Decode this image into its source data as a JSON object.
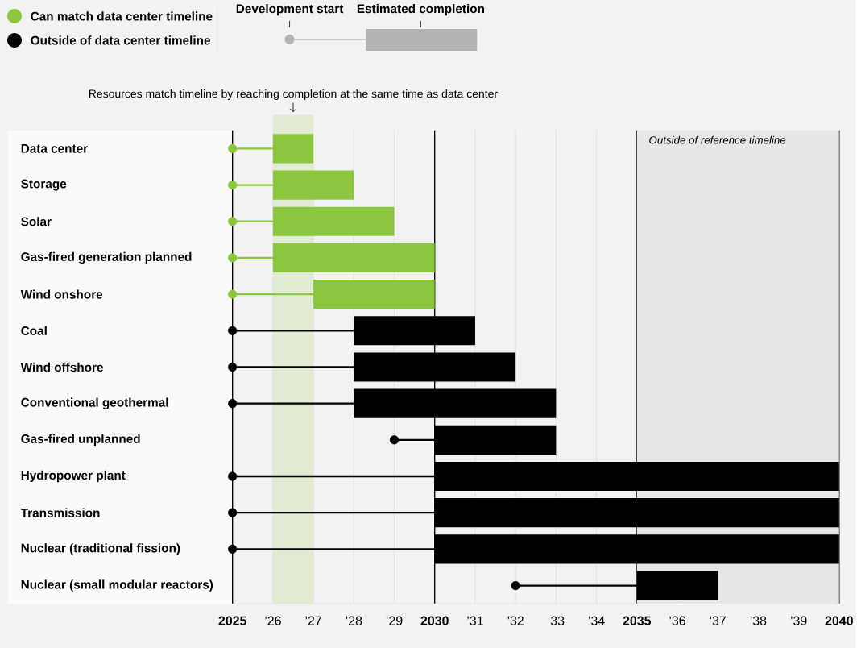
{
  "chart_data": {
    "type": "bar",
    "orientation": "horizontal",
    "categories": [
      "Data center",
      "Storage",
      "Solar",
      "Gas-fired generation planned",
      "Wind onshore",
      "Coal",
      "Wind offshore",
      "Conventional geothermal",
      "Gas-fired unplanned",
      "Hydropower plant",
      "Transmission",
      "Nuclear (traditional fission)",
      "Nuclear (small modular reactors)"
    ],
    "series": [
      {
        "name": "Can match data center timeline",
        "color": "#8cc63f",
        "base": [
          2026,
          2026,
          2026,
          2026,
          2027,
          null,
          null,
          null,
          null,
          null,
          null,
          null,
          null
        ],
        "values": [
          1,
          2,
          3,
          4,
          3,
          null,
          null,
          null,
          null,
          null,
          null,
          null,
          null
        ]
      },
      {
        "name": "Outside of data center timeline",
        "color": "#000000",
        "base": [
          null,
          null,
          null,
          null,
          null,
          2028,
          2028,
          2028,
          2030,
          2030,
          2030,
          2030,
          2035
        ],
        "values": [
          null,
          null,
          null,
          null,
          null,
          3,
          4,
          5,
          3,
          10,
          10,
          10,
          2
        ]
      },
      {
        "base": [
          2025,
          2025,
          2025,
          2025,
          2025,
          2025,
          2025,
          2025,
          2029,
          2025,
          2025,
          2025,
          2032
        ],
        "values": [
          1,
          1,
          1,
          1,
          2,
          3,
          3,
          3,
          1,
          5,
          5,
          5,
          3
        ],
        "colors": [
          "#8cc63f",
          "#8cc63f",
          "#8cc63f",
          "#8cc63f",
          "#8cc63f",
          "#000000",
          "#000000",
          "#000000",
          "#000000",
          "#000000",
          "#000000",
          "#000000",
          "#000000"
        ]
      },
      {
        "type": "scatter",
        "values": [
          2025,
          2025,
          2025,
          2025,
          2025,
          2025,
          2025,
          2025,
          2029,
          2025,
          2025,
          2025,
          2032
        ],
        "colors": [
          "#8cc63f",
          "#8cc63f",
          "#8cc63f",
          "#8cc63f",
          "#8cc63f",
          "#000000",
          "#000000",
          "#000000",
          "#000000",
          "#000000",
          "#000000",
          "#000000",
          "#000000"
        ]
      }
    ],
    "xlim": [
      2025,
      2040
    ],
    "xticks": [
      2025,
      {
        "value": 2026,
        "label": "’26"
      },
      {
        "value": 2027,
        "label": "’27"
      },
      {
        "value": 2028,
        "label": "’28"
      },
      {
        "value": 2029,
        "label": "’29"
      },
      2030,
      {
        "value": 2031,
        "label": "’31"
      },
      {
        "value": 2032,
        "label": "’32"
      },
      {
        "value": 2033,
        "label": "’33"
      },
      {
        "value": 2034,
        "label": "’34"
      },
      2035,
      {
        "value": 2036,
        "label": "’36"
      },
      {
        "value": 2037,
        "label": "’37"
      },
      {
        "value": 2038,
        "label": "’38"
      },
      {
        "value": 2039,
        "label": "’39"
      },
      2040
    ],
    "bands": [
      {
        "axis": "x",
        "from": 2026,
        "to": 2027,
        "color": "#e1ead2",
        "label": "Resources match timeline by reaching completion at the same time as data center"
      },
      {
        "axis": "x",
        "from": 2035,
        "to": 2040,
        "color": "#e6e6e8",
        "label": "Outside of reference timeline"
      }
    ],
    "annotations": [
      "Development start",
      "Estimated completion"
    ],
    "grid": true,
    "legend": "top left"
  }
}
